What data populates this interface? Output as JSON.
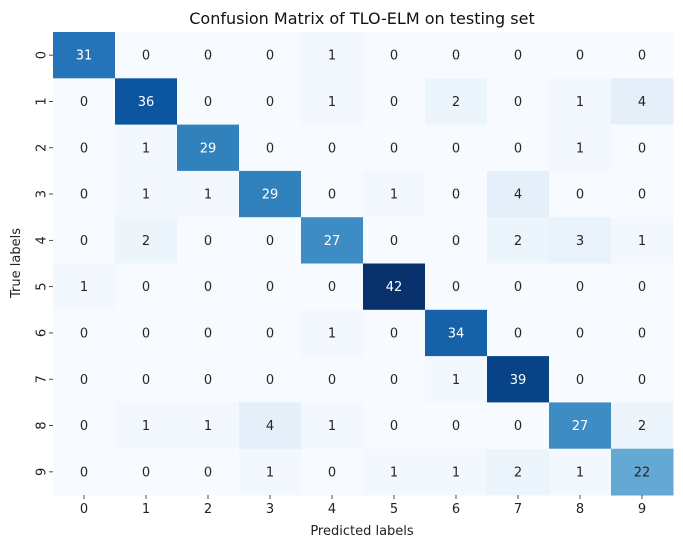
{
  "chart_data": {
    "type": "heatmap",
    "title": "Confusion Matrix of TLO-ELM on testing set",
    "xlabel": "Predicted labels",
    "ylabel": "True labels",
    "x_categories": [
      "0",
      "1",
      "2",
      "3",
      "4",
      "5",
      "6",
      "7",
      "8",
      "9"
    ],
    "y_categories": [
      "0",
      "1",
      "2",
      "3",
      "4",
      "5",
      "6",
      "7",
      "8",
      "9"
    ],
    "values": [
      [
        31,
        0,
        0,
        0,
        1,
        0,
        0,
        0,
        0,
        0
      ],
      [
        0,
        36,
        0,
        0,
        1,
        0,
        2,
        0,
        1,
        4
      ],
      [
        0,
        1,
        29,
        0,
        0,
        0,
        0,
        0,
        1,
        0
      ],
      [
        0,
        1,
        1,
        29,
        0,
        1,
        0,
        4,
        0,
        0
      ],
      [
        0,
        2,
        0,
        0,
        27,
        0,
        0,
        2,
        3,
        1
      ],
      [
        1,
        0,
        0,
        0,
        0,
        42,
        0,
        0,
        0,
        0
      ],
      [
        0,
        0,
        0,
        0,
        1,
        0,
        34,
        0,
        0,
        0
      ],
      [
        0,
        0,
        0,
        0,
        0,
        0,
        1,
        39,
        0,
        0
      ],
      [
        0,
        1,
        1,
        4,
        1,
        0,
        0,
        0,
        27,
        2
      ],
      [
        0,
        0,
        0,
        1,
        0,
        1,
        1,
        2,
        1,
        22
      ]
    ],
    "colormap": "Blues",
    "vmin": 0,
    "vmax": 42,
    "colorbar": false,
    "grid": false
  }
}
